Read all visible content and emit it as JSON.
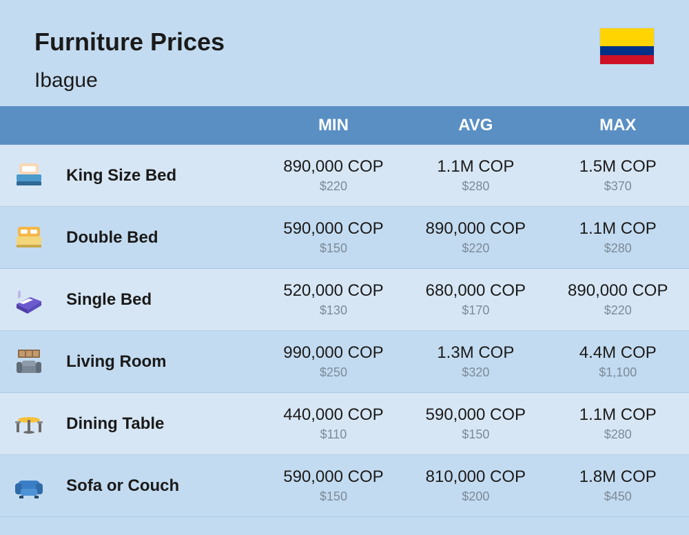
{
  "header": {
    "title": "Furniture Prices",
    "subtitle": "Ibague",
    "flag_colors": {
      "top": "#ffd400",
      "mid": "#003087",
      "bot": "#ce1126"
    }
  },
  "columns": {
    "min": "MIN",
    "avg": "AVG",
    "max": "MAX"
  },
  "colors": {
    "page_bg": "#c3dbf0",
    "header_bar": "#5a8fc4",
    "row_odd": "#d7e6f4",
    "row_even": "#c3dbf0",
    "text_main": "#1a1a1a",
    "text_sub": "#7b8a99",
    "header_text": "#ffffff"
  },
  "rows": [
    {
      "icon": "king-bed",
      "name": "King Size Bed",
      "min_main": "890,000 COP",
      "min_sub": "$220",
      "avg_main": "1.1M COP",
      "avg_sub": "$280",
      "max_main": "1.5M COP",
      "max_sub": "$370"
    },
    {
      "icon": "double-bed",
      "name": "Double Bed",
      "min_main": "590,000 COP",
      "min_sub": "$150",
      "avg_main": "890,000 COP",
      "avg_sub": "$220",
      "max_main": "1.1M COP",
      "max_sub": "$280"
    },
    {
      "icon": "single-bed",
      "name": "Single Bed",
      "min_main": "520,000 COP",
      "min_sub": "$130",
      "avg_main": "680,000 COP",
      "avg_sub": "$170",
      "max_main": "890,000 COP",
      "max_sub": "$220"
    },
    {
      "icon": "living-room",
      "name": "Living Room",
      "min_main": "990,000 COP",
      "min_sub": "$250",
      "avg_main": "1.3M COP",
      "avg_sub": "$320",
      "max_main": "4.4M COP",
      "max_sub": "$1,100"
    },
    {
      "icon": "dining-table",
      "name": "Dining Table",
      "min_main": "440,000 COP",
      "min_sub": "$110",
      "avg_main": "590,000 COP",
      "avg_sub": "$150",
      "max_main": "1.1M COP",
      "max_sub": "$280"
    },
    {
      "icon": "sofa",
      "name": "Sofa or Couch",
      "min_main": "590,000 COP",
      "min_sub": "$150",
      "avg_main": "810,000 COP",
      "avg_sub": "$200",
      "max_main": "1.8M COP",
      "max_sub": "$450"
    }
  ]
}
